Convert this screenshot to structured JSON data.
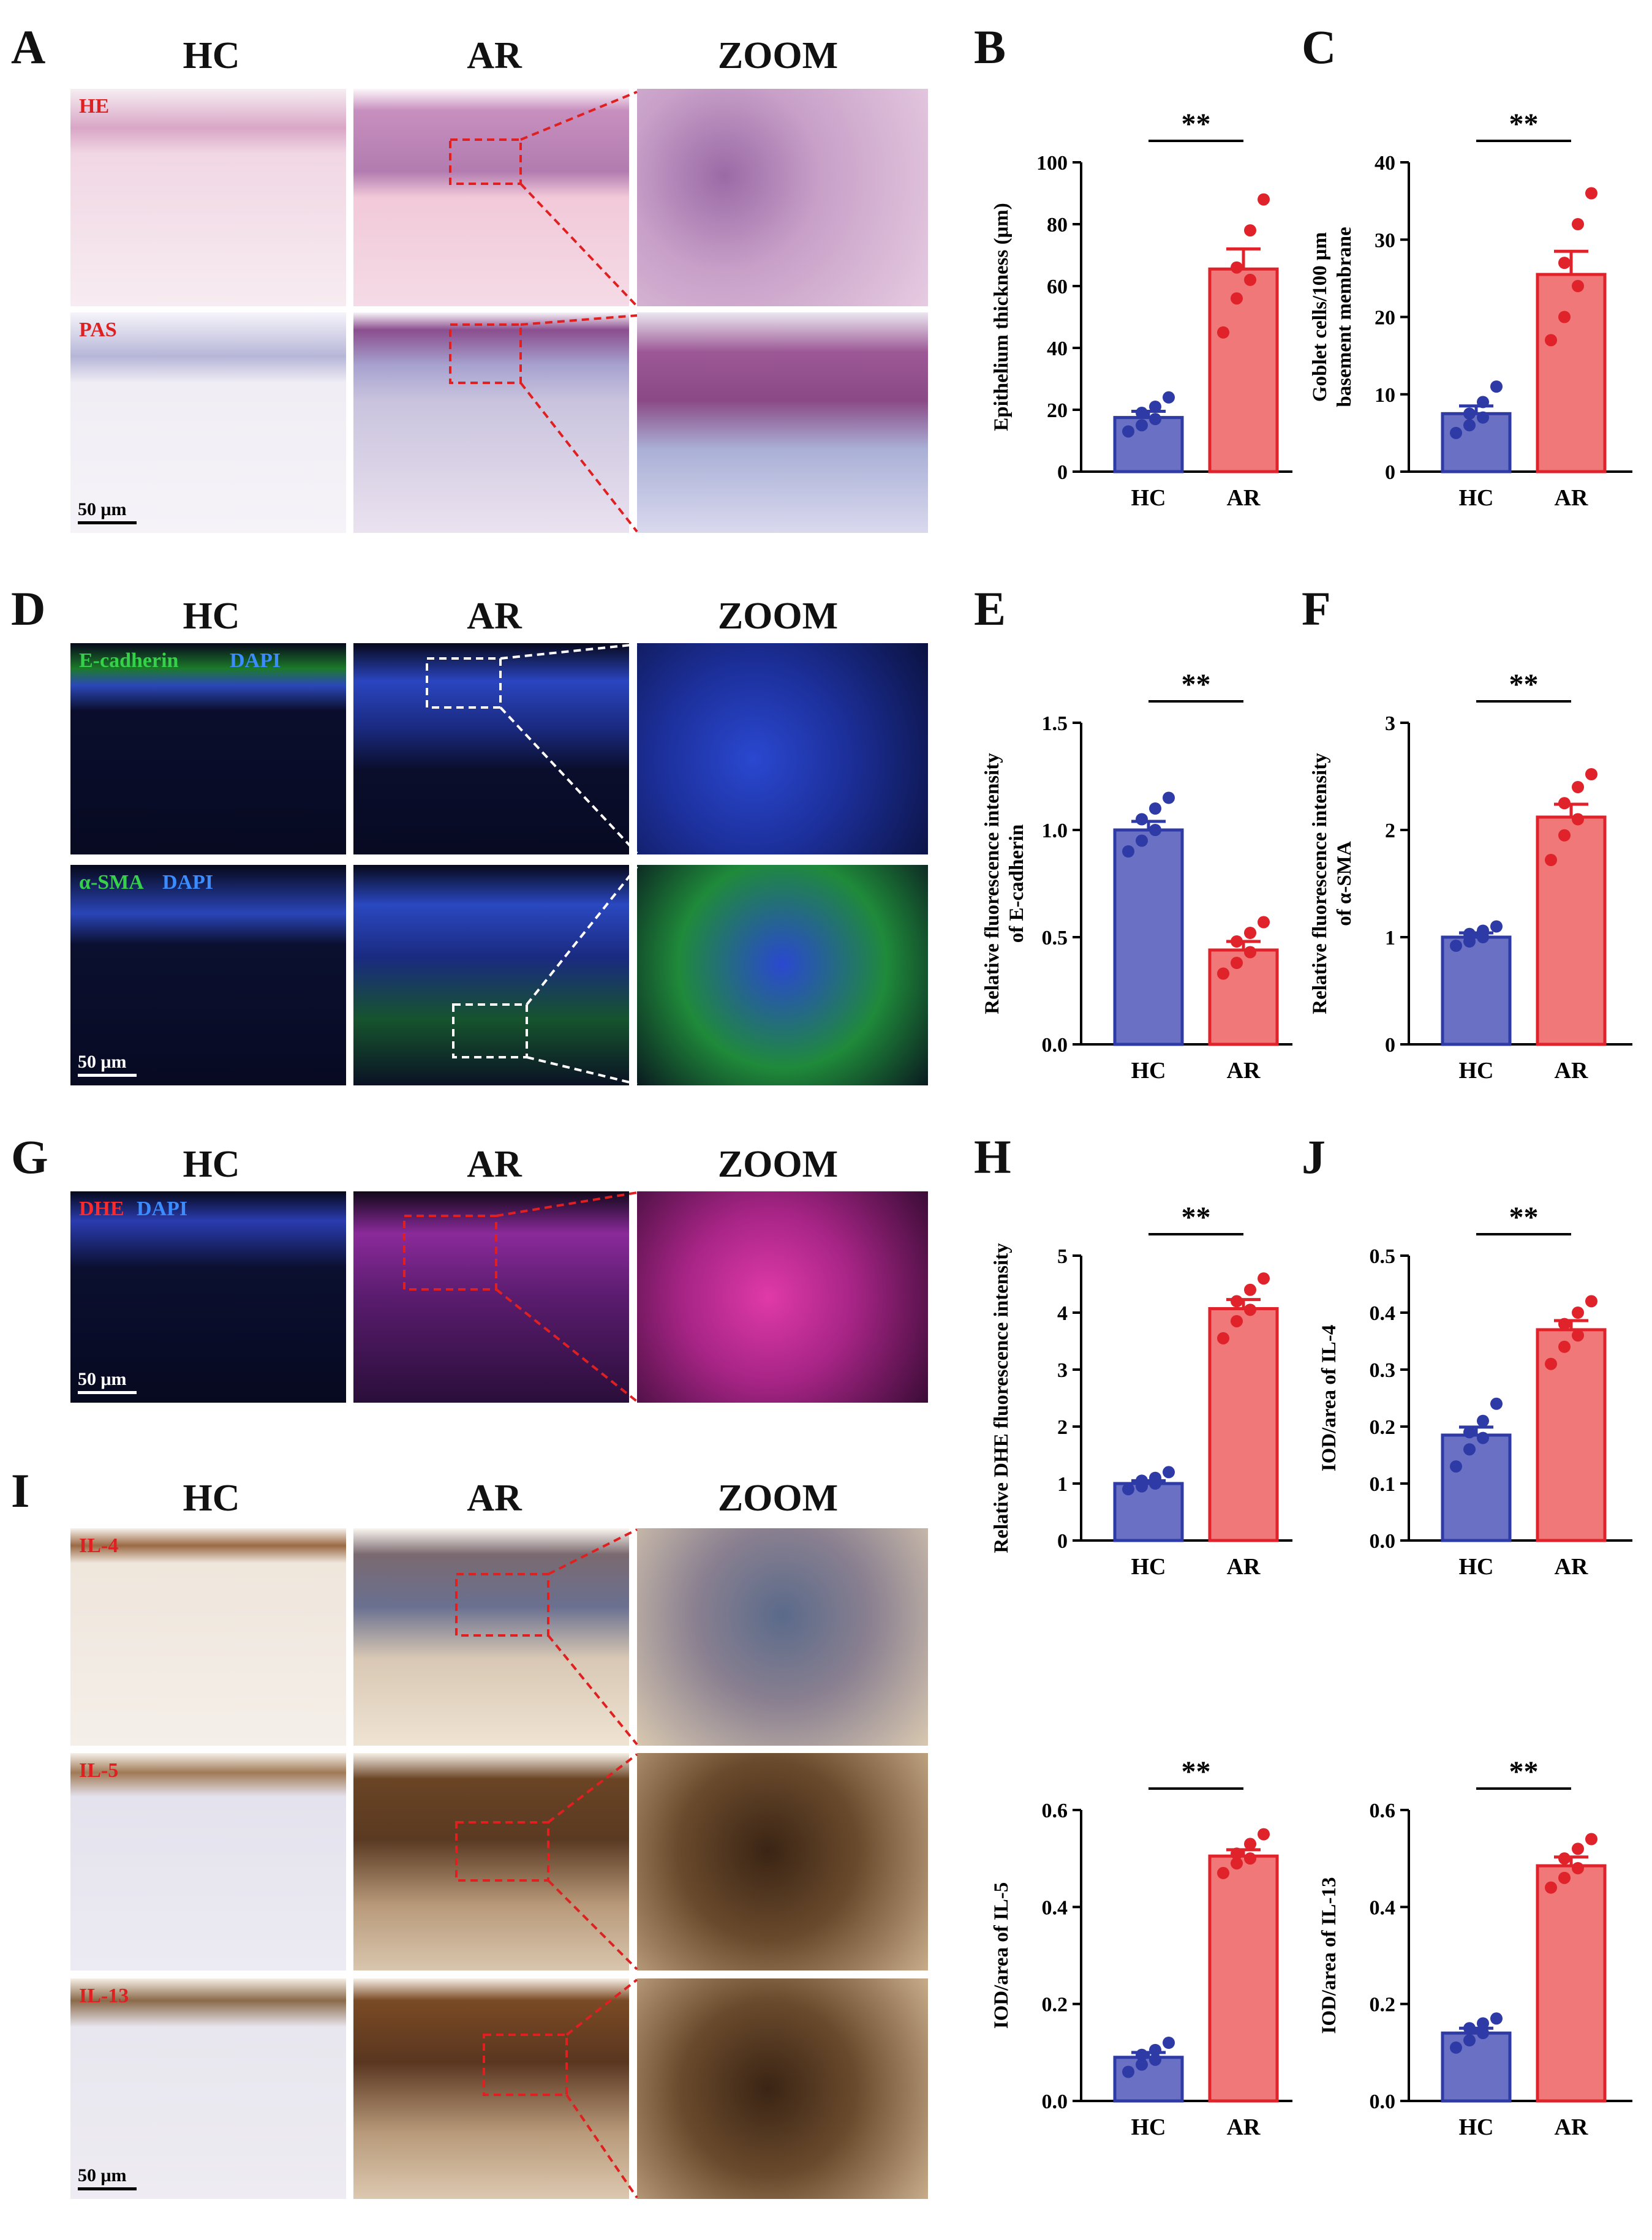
{
  "labels": {
    "A": "A",
    "B": "B",
    "C": "C",
    "D": "D",
    "E": "E",
    "F": "F",
    "G": "G",
    "H": "H",
    "I": "I",
    "J": "J",
    "hc": "HC",
    "ar": "AR",
    "zoom": "ZOOM",
    "he": "HE",
    "pas": "PAS",
    "ecad": "E-cadherin",
    "dapi": "DAPI",
    "asma": "α-SMA",
    "dhe": "DHE",
    "il4": "IL-4",
    "il5": "IL-5",
    "il13": "IL-13",
    "scale": "50 μm"
  },
  "colors": {
    "hc": "#6a71c4",
    "ar": "#f07878",
    "hc_edge": "#2e3aa6",
    "ar_edge": "#e0222a",
    "tag_red": "#e02020"
  },
  "chart_data": [
    {
      "id": "B",
      "type": "bar",
      "categories": [
        "HC",
        "AR"
      ],
      "values": [
        17.5,
        65.5
      ],
      "points": [
        [
          13,
          15,
          17,
          19,
          21,
          24
        ],
        [
          45,
          56,
          62,
          66,
          78,
          88
        ]
      ],
      "sem": [
        2,
        6.5
      ],
      "ylabel": "Epithelium thickness (μm)",
      "ylim": [
        0,
        100
      ],
      "yticks": [
        0,
        20,
        40,
        60,
        80,
        100
      ],
      "sig": "**"
    },
    {
      "id": "C",
      "type": "bar",
      "categories": [
        "HC",
        "AR"
      ],
      "values": [
        7.5,
        25.5
      ],
      "points": [
        [
          5,
          6,
          7,
          7.5,
          9,
          11
        ],
        [
          17,
          20,
          24,
          27,
          32,
          36
        ]
      ],
      "sem": [
        1,
        3
      ],
      "ylabel": [
        "Goblet cells/100 μm",
        "basement membrane"
      ],
      "ylim": [
        0,
        40
      ],
      "yticks": [
        0,
        10,
        20,
        30,
        40
      ],
      "sig": "**"
    },
    {
      "id": "E",
      "type": "bar",
      "categories": [
        "HC",
        "AR"
      ],
      "values": [
        1.0,
        0.44
      ],
      "points": [
        [
          0.9,
          0.95,
          1.0,
          1.05,
          1.1,
          1.15
        ],
        [
          0.33,
          0.38,
          0.43,
          0.48,
          0.52,
          0.57
        ]
      ],
      "sem": [
        0.04,
        0.04
      ],
      "ylabel": [
        "Relative fluorescence intensity",
        "of E-cadherin"
      ],
      "ylim": [
        0,
        1.5
      ],
      "yticks": [
        "0.0",
        "0.5",
        "1.0",
        "1.5"
      ],
      "sig": "**"
    },
    {
      "id": "F",
      "type": "bar",
      "categories": [
        "HC",
        "AR"
      ],
      "values": [
        1.0,
        2.12
      ],
      "points": [
        [
          0.92,
          0.96,
          1.0,
          1.03,
          1.06,
          1.1
        ],
        [
          1.72,
          1.95,
          2.1,
          2.25,
          2.4,
          2.52
        ]
      ],
      "sem": [
        0.04,
        0.12
      ],
      "ylabel": [
        "Relative fluorescence intensity",
        "of α-SMA"
      ],
      "ylim": [
        0,
        3
      ],
      "yticks": [
        0,
        1,
        2,
        3
      ],
      "sig": "**"
    },
    {
      "id": "H",
      "type": "bar",
      "categories": [
        "HC",
        "AR"
      ],
      "values": [
        1.0,
        4.07
      ],
      "points": [
        [
          0.9,
          0.95,
          1.0,
          1.05,
          1.1,
          1.2
        ],
        [
          3.55,
          3.85,
          4.05,
          4.2,
          4.4,
          4.6
        ]
      ],
      "sem": [
        0.05,
        0.16
      ],
      "ylabel": "Relative DHE fluorescence intensity",
      "ylim": [
        0,
        5
      ],
      "yticks": [
        0,
        1,
        2,
        3,
        4,
        5
      ],
      "sig": "**"
    },
    {
      "id": "J",
      "type": "bar",
      "categories": [
        "HC",
        "AR"
      ],
      "values": [
        0.185,
        0.37
      ],
      "points": [
        [
          0.13,
          0.16,
          0.18,
          0.19,
          0.21,
          0.24
        ],
        [
          0.31,
          0.34,
          0.36,
          0.38,
          0.4,
          0.42
        ]
      ],
      "sem": [
        0.014,
        0.016
      ],
      "ylabel": "IOD/area of IL-4",
      "ylim": [
        0,
        0.5
      ],
      "yticks": [
        "0.0",
        "0.1",
        "0.2",
        "0.3",
        "0.4",
        "0.5"
      ],
      "sig": "**"
    },
    {
      "id": "IL5",
      "type": "bar",
      "categories": [
        "HC",
        "AR"
      ],
      "values": [
        0.09,
        0.505
      ],
      "points": [
        [
          0.06,
          0.075,
          0.085,
          0.095,
          0.105,
          0.12
        ],
        [
          0.47,
          0.49,
          0.5,
          0.51,
          0.53,
          0.55
        ]
      ],
      "sem": [
        0.01,
        0.013
      ],
      "ylabel": "IOD/area of IL-5",
      "ylim": [
        0,
        0.6
      ],
      "yticks": [
        "0.0",
        "0.2",
        "0.4",
        "0.6"
      ],
      "sig": "**"
    },
    {
      "id": "IL13",
      "type": "bar",
      "categories": [
        "HC",
        "AR"
      ],
      "values": [
        0.14,
        0.485
      ],
      "points": [
        [
          0.11,
          0.125,
          0.14,
          0.15,
          0.16,
          0.17
        ],
        [
          0.44,
          0.46,
          0.48,
          0.5,
          0.52,
          0.54
        ]
      ],
      "sem": [
        0.01,
        0.018
      ],
      "ylabel": "IOD/area of IL-13",
      "ylim": [
        0,
        0.6
      ],
      "yticks": [
        "0.0",
        "0.2",
        "0.4",
        "0.6"
      ],
      "sig": "**"
    }
  ]
}
